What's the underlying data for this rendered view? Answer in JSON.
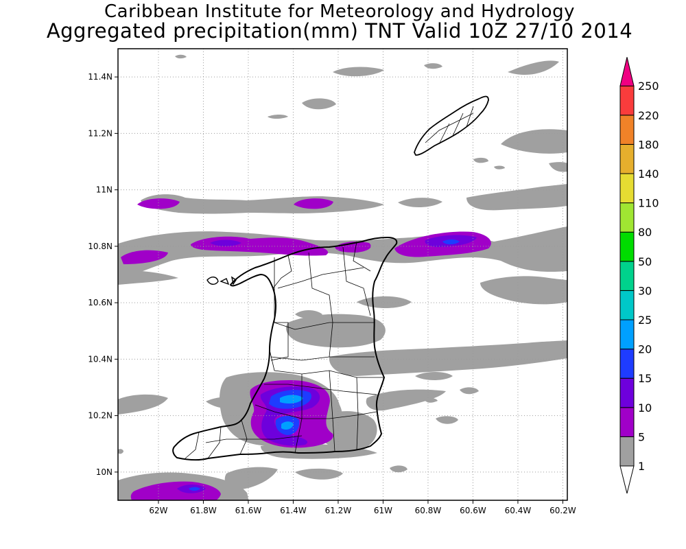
{
  "header": {
    "line1": "Caribbean Institute for Meteorology and Hydrology",
    "line2": "Aggregated precipitation(mm) TNT Valid 10Z 27/10 2014"
  },
  "map": {
    "lon_range": [
      -62.18,
      -60.18
    ],
    "lat_range": [
      9.9,
      11.5
    ],
    "lon_ticks": [
      {
        "value": -62.0,
        "label": "62W"
      },
      {
        "value": -61.8,
        "label": "61.8W"
      },
      {
        "value": -61.6,
        "label": "61.6W"
      },
      {
        "value": -61.4,
        "label": "61.4W"
      },
      {
        "value": -61.2,
        "label": "61.2W"
      },
      {
        "value": -61.0,
        "label": "61W"
      },
      {
        "value": -60.8,
        "label": "60.8W"
      },
      {
        "value": -60.6,
        "label": "60.6W"
      },
      {
        "value": -60.4,
        "label": "60.4W"
      },
      {
        "value": -60.2,
        "label": "60.2W"
      }
    ],
    "lat_ticks": [
      {
        "value": 10.0,
        "label": "10N"
      },
      {
        "value": 10.2,
        "label": "10.2N"
      },
      {
        "value": 10.4,
        "label": "10.4N"
      },
      {
        "value": 10.6,
        "label": "10.6N"
      },
      {
        "value": 10.8,
        "label": "10.8N"
      },
      {
        "value": 11.0,
        "label": "11N"
      },
      {
        "value": 11.2,
        "label": "11.2N"
      },
      {
        "value": 11.4,
        "label": "11.4N"
      }
    ],
    "grid": "dotted"
  },
  "colorbar": {
    "levels": [
      {
        "label": "1",
        "color": "#ffffff"
      },
      {
        "label": "5",
        "color": "#a0a0a0"
      },
      {
        "label": "10",
        "color": "#a000c8"
      },
      {
        "label": "15",
        "color": "#6e00dc"
      },
      {
        "label": "20",
        "color": "#1e3cff"
      },
      {
        "label": "25",
        "color": "#00a0ff"
      },
      {
        "label": "30",
        "color": "#00c8c8"
      },
      {
        "label": "50",
        "color": "#00d28c"
      },
      {
        "label": "80",
        "color": "#00dc00"
      },
      {
        "label": "110",
        "color": "#a0e632"
      },
      {
        "label": "140",
        "color": "#e6dc32"
      },
      {
        "label": "180",
        "color": "#e6af2d"
      },
      {
        "label": "220",
        "color": "#f08228"
      },
      {
        "label": "250",
        "color": "#fa3c3c"
      }
    ],
    "top_color": "#f00082"
  }
}
